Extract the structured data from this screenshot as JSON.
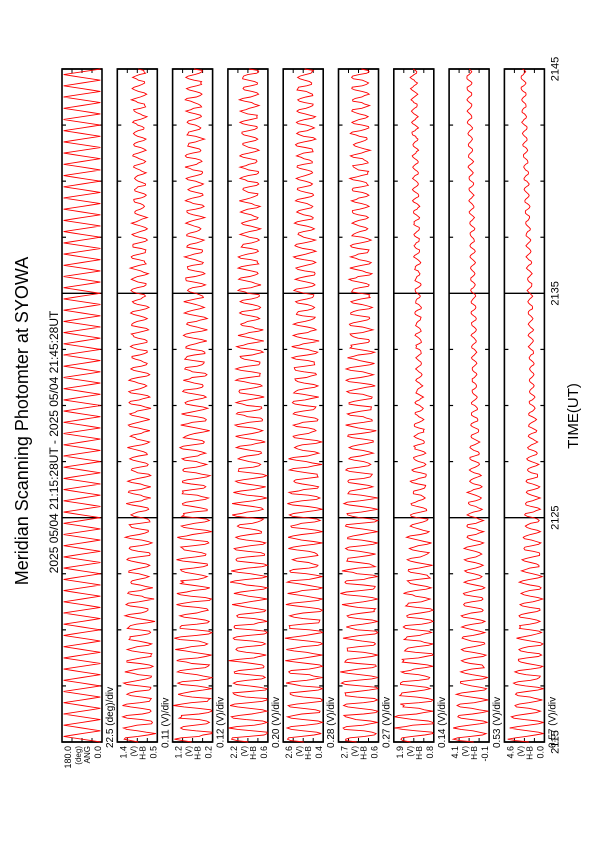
{
  "chart_data": {
    "type": "line",
    "title": "Meridian Scanning Photomter at SYOWA",
    "subtitle": "2025 05/04 21:15:28UT - 2025 05/04 21:45:28UT",
    "xlabel": "TIME(UT)",
    "x_ticks": [
      "2115",
      "2125",
      "2135",
      "2145"
    ],
    "xlim": [
      2115,
      2145
    ],
    "series_color": "#ff0000",
    "panels": [
      {
        "name": "ANG",
        "unit": "(deg)",
        "scale_label": "22.5 (deg)/div",
        "y_top": "180.0",
        "y_bottom": "0.0",
        "amp": 1.0,
        "noise": 0.0
      },
      {
        "name": "H-B",
        "unit": "(V)",
        "scale_label": "0.11 (V)/div",
        "y_top": "1.4",
        "y_bottom": "0.5",
        "amp": 0.22,
        "noise": 0.1
      },
      {
        "name": "H-B",
        "unit": "(V)",
        "scale_label": "0.12 (V)/div",
        "y_top": "1.2",
        "y_bottom": "0.2",
        "amp": 0.28,
        "noise": 0.12
      },
      {
        "name": "H-B",
        "unit": "(V)",
        "scale_label": "0.20 (V)/div",
        "y_top": "2.2",
        "y_bottom": "0.6",
        "amp": 0.3,
        "noise": 0.12
      },
      {
        "name": "H-B",
        "unit": "(V)",
        "scale_label": "0.28 (V)/div",
        "y_top": "2.6",
        "y_bottom": "0.4",
        "amp": 0.3,
        "noise": 0.12
      },
      {
        "name": "H-B",
        "unit": "(V)",
        "scale_label": "0.27 (V)/div",
        "y_top": "2.7",
        "y_bottom": "0.6",
        "amp": 0.3,
        "noise": 0.12
      },
      {
        "name": "H-B",
        "unit": "(V)",
        "scale_label": "0.14 (V)/div",
        "y_top": "1.9",
        "y_bottom": "0.8",
        "amp": 0.3,
        "noise": 0.14
      },
      {
        "name": "H-B",
        "unit": "(V)",
        "scale_label": "0.53 (V)/div",
        "y_top": "4.1",
        "y_bottom": "-0.1",
        "amp": 0.25,
        "noise": 0.08
      },
      {
        "name": "H-B",
        "unit": "(V)",
        "scale_label": "0.57 (V)/div",
        "y_top": "4.6",
        "y_bottom": "0.0",
        "amp": 0.25,
        "noise": 0.08
      }
    ]
  }
}
